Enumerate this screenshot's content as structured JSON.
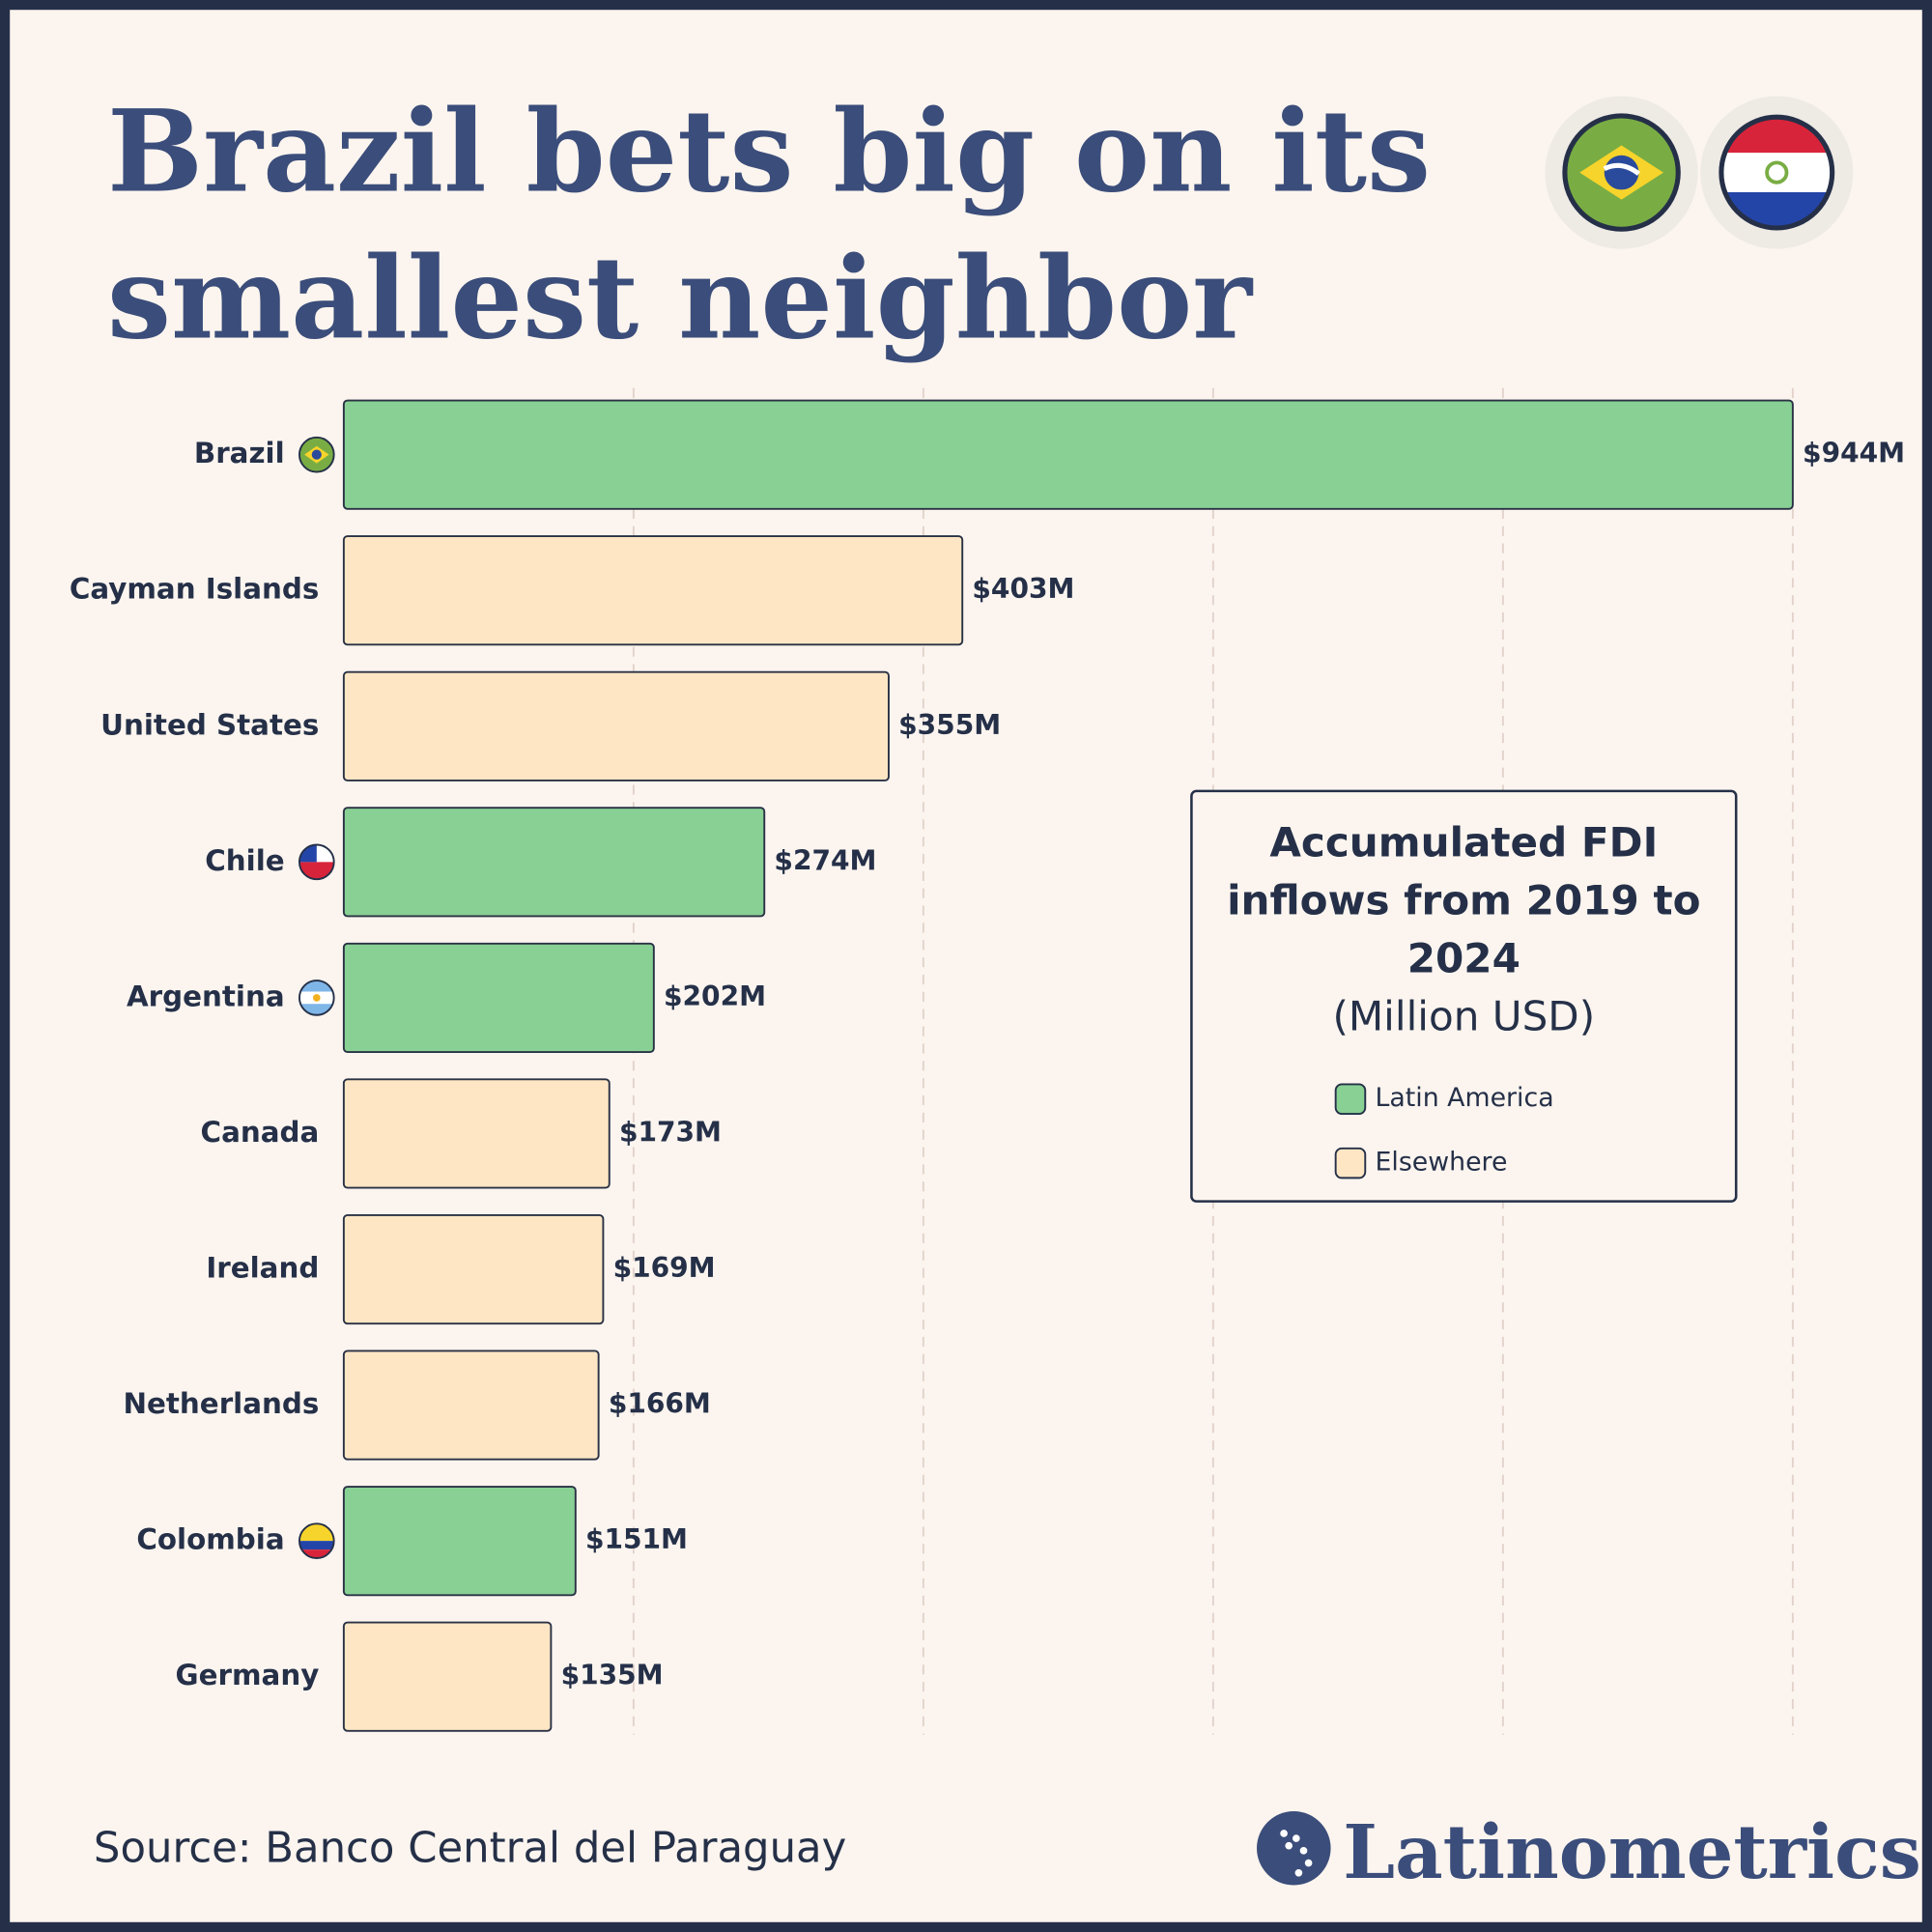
{
  "chart_data": {
    "type": "bar",
    "orientation": "horizontal",
    "title": "Brazil bets big on its smallest neighbor",
    "legend_title": "Accumulated FDI inflows from 2019 to 2024",
    "legend_subtitle": "(Million USD)",
    "source": "Source: Banco Central del Paraguay",
    "brand": "Latinometrics",
    "categories": [
      "Brazil",
      "Cayman Islands",
      "United States",
      "Chile",
      "Argentina",
      "Canada",
      "Ireland",
      "Netherlands",
      "Colombia",
      "Germany"
    ],
    "series": [
      {
        "name": "Latin America",
        "color": "#88d094",
        "values": [
          944,
          null,
          null,
          274,
          202,
          null,
          null,
          null,
          151,
          null
        ],
        "value_labels": [
          "$944M",
          null,
          null,
          "$274M",
          "$202M",
          null,
          null,
          null,
          "$151M",
          null
        ]
      },
      {
        "name": "Elsewhere",
        "color": "#fee6c4",
        "values": [
          null,
          403,
          355,
          null,
          null,
          173,
          169,
          166,
          null,
          135
        ],
        "value_labels": [
          null,
          "$403M",
          "$355M",
          null,
          null,
          "$173M",
          "$169M",
          "$166M",
          null,
          "$135M"
        ]
      }
    ],
    "xlim": [
      0,
      944
    ],
    "xticks": [
      188.8,
      377.6,
      566.4,
      755.2,
      944
    ],
    "grid": true
  }
}
